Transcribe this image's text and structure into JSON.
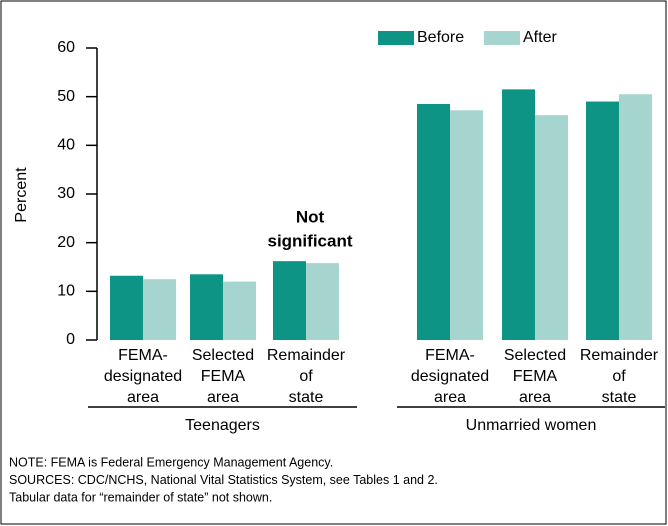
{
  "chart_data": {
    "type": "bar",
    "y_label": "Percent",
    "ylim": [
      0,
      60
    ],
    "yticks": [
      0,
      10,
      20,
      30,
      40,
      50,
      60
    ],
    "groups": [
      {
        "name": "Teenagers",
        "categories": [
          [
            "FEMA-",
            "designated",
            "area"
          ],
          [
            "Selected",
            "FEMA",
            "area"
          ],
          [
            "Remainder",
            "of",
            "state"
          ]
        ]
      },
      {
        "name": "Unmarried women",
        "categories": [
          [
            "FEMA-",
            "designated",
            "area"
          ],
          [
            "Selected",
            "FEMA",
            "area"
          ],
          [
            "Remainder",
            "of",
            "state"
          ]
        ]
      }
    ],
    "series": [
      {
        "name": "Before",
        "color": "#0e9484",
        "values": [
          13.2,
          13.5,
          16.2,
          48.5,
          51.5,
          49.0
        ]
      },
      {
        "name": "After",
        "color": "#a6d5d0",
        "values": [
          12.5,
          12.0,
          15.8,
          47.2,
          46.2,
          50.5
        ]
      }
    ],
    "annotation": [
      "Not",
      "significant"
    ],
    "notes": [
      "NOTE: FEMA is Federal Emergency Management Agency.",
      "SOURCES: CDC/NCHS, National Vital Statistics System, see Tables 1 and 2.",
      "Tabular data for “remainder of state” not shown."
    ]
  }
}
